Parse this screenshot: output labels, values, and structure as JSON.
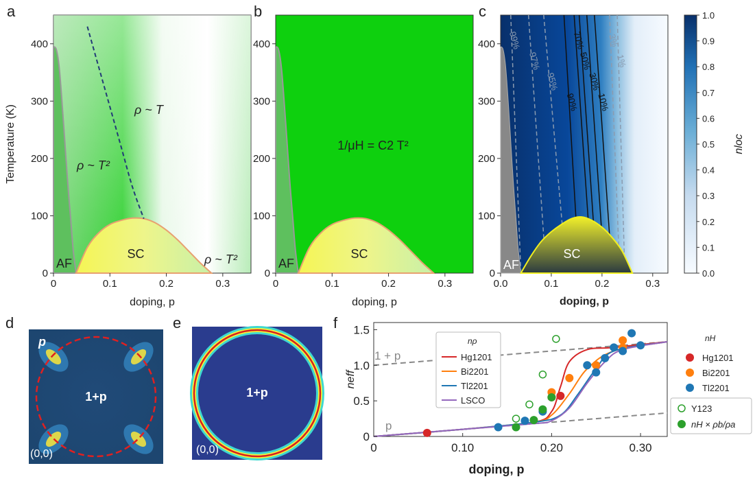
{
  "figure": {
    "panels": {
      "a": {
        "letter": "a",
        "ylabel": "Temperature (K)",
        "xlabel": "doping, p",
        "regions": {
          "rho_T": "ρ ~ T",
          "rho_T2": "ρ ~ T²",
          "rho_T2_right": "ρ ~ T²",
          "sc": "SC",
          "af": "AF"
        }
      },
      "b": {
        "letter": "b",
        "xlabel": "doping, p",
        "formula": "1/μH = C2 T²",
        "sc": "SC",
        "af": "AF"
      },
      "c": {
        "letter": "c",
        "xlabel": "doping, p",
        "colorbar_label": "nloc",
        "sc": "SC",
        "af": "AF",
        "contours": [
          "99%",
          "97%",
          "95%",
          "90%",
          "70%",
          "50%",
          "30%",
          "10%",
          "3%",
          "1%"
        ]
      },
      "d": {
        "letter": "d",
        "p_label": "p",
        "center_label": "1+p",
        "origin": "(0,0)"
      },
      "e": {
        "letter": "e",
        "center_label": "1+p",
        "origin": "(0,0)"
      },
      "f": {
        "letter": "f",
        "ylabel": "neff",
        "xlabel": "doping, p",
        "line_top": "1 + p",
        "line_bottom": "p"
      }
    },
    "legend_rho": {
      "title": "nρ",
      "items": [
        "Hg1201",
        "Bi2201",
        "Tl2201",
        "LSCO"
      ]
    },
    "legend_h": {
      "title": "nH",
      "items": [
        "Hg1201",
        "Bi2201",
        "Tl2201"
      ]
    },
    "legend_other": {
      "items": [
        "Y123",
        "nH × ρb/ρa"
      ]
    }
  },
  "chart_data": [
    {
      "type": "area",
      "panel": "a",
      "title": "",
      "xlabel": "doping, p",
      "ylabel": "Temperature (K)",
      "xlim": [
        0,
        0.35
      ],
      "ylim": [
        0,
        450
      ],
      "xticks": [
        "0",
        "0.1",
        "0.2",
        "0.3"
      ],
      "yticks": [
        "0",
        "100",
        "200",
        "300",
        "400"
      ],
      "sc_dome": {
        "x": [
          0.04,
          0.06,
          0.08,
          0.1,
          0.12,
          0.14,
          0.16,
          0.18,
          0.2,
          0.22,
          0.24,
          0.26,
          0.28
        ],
        "y": [
          0,
          45,
          70,
          85,
          92,
          96,
          95,
          88,
          75,
          58,
          38,
          18,
          0
        ]
      },
      "af_boundary": {
        "x": [
          0,
          0.005,
          0.01,
          0.015,
          0.02,
          0.025,
          0.03,
          0.035,
          0.04
        ],
        "y": [
          395,
          390,
          360,
          300,
          230,
          160,
          100,
          40,
          0
        ]
      },
      "crossover_line": {
        "x": [
          0.06,
          0.08,
          0.1,
          0.12,
          0.14,
          0.16
        ],
        "y": [
          430,
          360,
          290,
          220,
          150,
          95
        ]
      }
    },
    {
      "type": "area",
      "panel": "b",
      "title": "",
      "xlabel": "doping, p",
      "xlim": [
        0,
        0.35
      ],
      "ylim": [
        0,
        450
      ],
      "xticks": [
        "0",
        "0.1",
        "0.2",
        "0.3"
      ],
      "yticks": [
        "0",
        "100",
        "200",
        "300",
        "400"
      ]
    },
    {
      "type": "heatmap",
      "panel": "c",
      "title": "",
      "xlabel": "doping, p",
      "xlim": [
        0,
        0.33
      ],
      "ylim": [
        0,
        450
      ],
      "xticks": [
        "0.0",
        "0.1",
        "0.2",
        "0.3"
      ],
      "yticks": [
        "0",
        "100",
        "200",
        "300",
        "400"
      ],
      "colorbar_ticks": [
        "0.0",
        "0.1",
        "0.2",
        "0.3",
        "0.4",
        "0.5",
        "0.6",
        "0.7",
        "0.8",
        "0.9",
        "1.0"
      ],
      "contour_levels": [
        "99%",
        "97%",
        "95%",
        "90%",
        "70%",
        "50%",
        "30%",
        "10%",
        "3%",
        "1%"
      ]
    },
    {
      "type": "line",
      "panel": "f",
      "title": "",
      "xlabel": "doping, p",
      "ylabel": "neff",
      "xlim": [
        0,
        0.33
      ],
      "ylim": [
        0,
        1.6
      ],
      "xticks": [
        "0",
        "0.10",
        "0.20",
        "0.30"
      ],
      "yticks": [
        "0",
        "0.5",
        "1.0",
        "1.5"
      ],
      "series": [
        {
          "name": "Hg1201",
          "color": "#d62728",
          "x": [
            0,
            0.1,
            0.18,
            0.2,
            0.21,
            0.22,
            0.24,
            0.27,
            0.33
          ],
          "y": [
            0,
            0.1,
            0.2,
            0.35,
            0.7,
            1.05,
            1.22,
            1.25,
            1.33
          ]
        },
        {
          "name": "Bi2201",
          "color": "#ff7f0e",
          "x": [
            0,
            0.1,
            0.18,
            0.2,
            0.22,
            0.24,
            0.27,
            0.33
          ],
          "y": [
            0,
            0.1,
            0.2,
            0.3,
            0.6,
            0.95,
            1.2,
            1.33
          ]
        },
        {
          "name": "Tl2201",
          "color": "#1f77b4",
          "x": [
            0,
            0.1,
            0.18,
            0.21,
            0.23,
            0.25,
            0.27,
            0.33
          ],
          "y": [
            0,
            0.1,
            0.2,
            0.3,
            0.6,
            0.95,
            1.2,
            1.33
          ]
        },
        {
          "name": "LSCO",
          "color": "#9467bd",
          "x": [
            0,
            0.1,
            0.18,
            0.2,
            0.22,
            0.24,
            0.26,
            0.28,
            0.33
          ],
          "y": [
            0,
            0.1,
            0.18,
            0.22,
            0.4,
            0.75,
            1.05,
            1.22,
            1.33
          ]
        }
      ],
      "points": {
        "Hg1201": {
          "x": [
            0.06,
            0.2,
            0.21
          ],
          "y": [
            0.05,
            0.55,
            0.57
          ]
        },
        "Bi2201": {
          "x": [
            0.2,
            0.22,
            0.25,
            0.28,
            0.28
          ],
          "y": [
            0.62,
            0.82,
            1.0,
            1.35,
            1.25
          ]
        },
        "Tl2201": {
          "x": [
            0.14,
            0.17,
            0.19,
            0.24,
            0.25,
            0.26,
            0.27,
            0.28,
            0.29,
            0.3
          ],
          "y": [
            0.13,
            0.22,
            0.35,
            1.0,
            0.9,
            1.1,
            1.25,
            1.2,
            1.45,
            1.28
          ]
        },
        "Y123": {
          "x": [
            0.16,
            0.175,
            0.19,
            0.205
          ],
          "y": [
            0.25,
            0.45,
            0.87,
            1.37
          ]
        },
        "nH_ratio": {
          "x": [
            0.16,
            0.18,
            0.19,
            0.2
          ],
          "y": [
            0.13,
            0.23,
            0.38,
            0.55
          ]
        }
      },
      "guide_lines": [
        {
          "name": "1 + p",
          "y0": 1.0,
          "y1": 1.33
        },
        {
          "name": "p",
          "y0": 0,
          "y1": 0.33
        }
      ]
    }
  ]
}
